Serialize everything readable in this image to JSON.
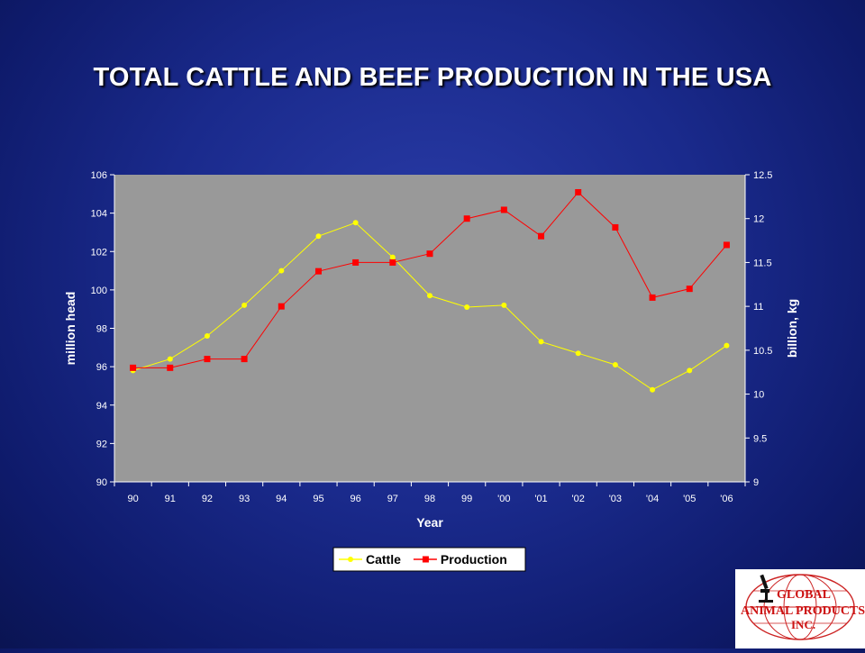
{
  "slide": {
    "title": "TOTAL CATTLE AND BEEF PRODUCTION IN THE USA"
  },
  "chart_data": {
    "type": "line",
    "categories": [
      "90",
      "91",
      "92",
      "93",
      "94",
      "95",
      "96",
      "97",
      "98",
      "99",
      "'00",
      "'01",
      "'02",
      "'03",
      "'04",
      "'05",
      "'06"
    ],
    "xlabel": "Year",
    "ylabel": "million head",
    "y2label": "billion, kg",
    "ylim": [
      90,
      106
    ],
    "y2lim": [
      9,
      12.5
    ],
    "yticks": [
      "90",
      "92",
      "94",
      "96",
      "98",
      "100",
      "102",
      "104",
      "106"
    ],
    "y2ticks": [
      "9",
      "9.5",
      "10",
      "10.5",
      "11",
      "11.5",
      "12",
      "12.5"
    ],
    "grid": false,
    "plot_background": "#999999",
    "legend_position": "bottom",
    "series": [
      {
        "name": "Cattle",
        "axis": "left",
        "color": "#ffff00",
        "marker": "circle",
        "values": [
          95.8,
          96.4,
          97.6,
          99.2,
          101.0,
          102.8,
          103.5,
          101.7,
          99.7,
          99.1,
          99.2,
          97.3,
          96.7,
          96.1,
          94.8,
          95.8,
          97.1
        ]
      },
      {
        "name": "Production",
        "axis": "right",
        "color": "#ff0000",
        "marker": "square",
        "values": [
          10.3,
          10.3,
          10.4,
          10.4,
          11.0,
          11.4,
          11.5,
          11.5,
          11.6,
          12.0,
          12.1,
          11.8,
          12.3,
          11.9,
          11.1,
          11.2,
          11.7
        ]
      }
    ]
  },
  "logo": {
    "name": "global-animal-products-logo",
    "text_lines": [
      "GLOBAL",
      "ANIMAL PRODUCTS",
      "INC."
    ]
  }
}
